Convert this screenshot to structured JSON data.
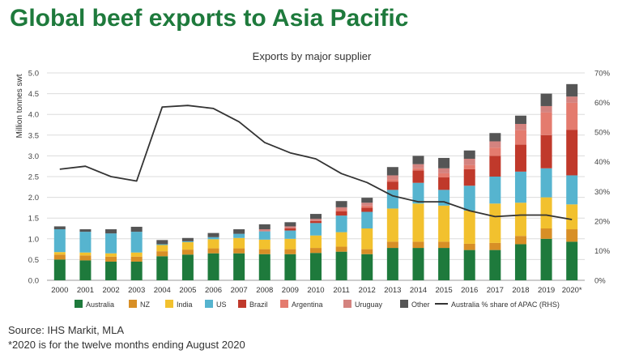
{
  "title": "Global beef exports to Asia Pacific",
  "source": "Source: IHS Markit, MLA",
  "note": "*2020 is for the twelve months ending August 2020",
  "chart_data": {
    "type": "bar",
    "stacked": true,
    "subtitle": "Exports by major supplier",
    "ylabel": "Million tonnes swt",
    "ylim": [
      0,
      5
    ],
    "yticks": [
      "0.0",
      "0.5",
      "1.0",
      "1.5",
      "2.0",
      "2.5",
      "3.0",
      "3.5",
      "4.0",
      "4.5",
      "5.0"
    ],
    "y2lim": [
      0,
      70
    ],
    "y2ticks": [
      "0%",
      "10%",
      "20%",
      "30%",
      "40%",
      "50%",
      "60%",
      "70%"
    ],
    "grid": true,
    "legend_position": "bottom",
    "categories": [
      "2000",
      "2001",
      "2002",
      "2003",
      "2004",
      "2005",
      "2006",
      "2007",
      "2008",
      "2009",
      "2010",
      "2011",
      "2012",
      "2013",
      "2014",
      "2015",
      "2016",
      "2017",
      "2018",
      "2019",
      "2020*"
    ],
    "series": [
      {
        "name": "Australia",
        "color": "#1e7a3c",
        "values": [
          0.5,
          0.48,
          0.45,
          0.45,
          0.58,
          0.62,
          0.65,
          0.65,
          0.63,
          0.63,
          0.66,
          0.69,
          0.63,
          0.78,
          0.78,
          0.78,
          0.73,
          0.73,
          0.87,
          1.0,
          0.93
        ]
      },
      {
        "name": "NZ",
        "color": "#d88f26",
        "values": [
          0.12,
          0.12,
          0.12,
          0.12,
          0.12,
          0.12,
          0.12,
          0.12,
          0.12,
          0.12,
          0.12,
          0.12,
          0.12,
          0.15,
          0.15,
          0.15,
          0.15,
          0.17,
          0.2,
          0.25,
          0.3
        ]
      },
      {
        "name": "India",
        "color": "#f2c12e",
        "values": [
          0.06,
          0.07,
          0.08,
          0.1,
          0.15,
          0.18,
          0.22,
          0.25,
          0.23,
          0.25,
          0.3,
          0.35,
          0.5,
          0.8,
          0.92,
          0.87,
          0.8,
          0.95,
          0.8,
          0.75,
          0.6
        ]
      },
      {
        "name": "US",
        "color": "#56b4cf",
        "values": [
          0.55,
          0.5,
          0.48,
          0.5,
          0.02,
          0.02,
          0.05,
          0.1,
          0.2,
          0.2,
          0.3,
          0.4,
          0.4,
          0.45,
          0.5,
          0.38,
          0.6,
          0.65,
          0.75,
          0.7,
          0.7
        ]
      },
      {
        "name": "Brazil",
        "color": "#c0392b",
        "values": [
          0.0,
          0.0,
          0.0,
          0.0,
          0.0,
          0.0,
          0.0,
          0.0,
          0.0,
          0.05,
          0.05,
          0.1,
          0.1,
          0.2,
          0.3,
          0.3,
          0.4,
          0.5,
          0.65,
          0.8,
          1.1
        ]
      },
      {
        "name": "Argentina",
        "color": "#e47b6e",
        "values": [
          0.0,
          0.0,
          0.0,
          0.0,
          0.0,
          0.0,
          0.0,
          0.0,
          0.0,
          0.0,
          0.0,
          0.05,
          0.05,
          0.05,
          0.05,
          0.1,
          0.1,
          0.2,
          0.35,
          0.55,
          0.65
        ]
      },
      {
        "name": "Uruguay",
        "color": "#d4837f",
        "values": [
          0.0,
          0.0,
          0.0,
          0.0,
          0.0,
          0.0,
          0.0,
          0.0,
          0.05,
          0.05,
          0.05,
          0.05,
          0.07,
          0.1,
          0.1,
          0.12,
          0.15,
          0.15,
          0.15,
          0.15,
          0.15
        ]
      },
      {
        "name": "Other",
        "color": "#555555",
        "values": [
          0.07,
          0.06,
          0.1,
          0.12,
          0.1,
          0.08,
          0.1,
          0.11,
          0.12,
          0.1,
          0.12,
          0.15,
          0.12,
          0.2,
          0.2,
          0.25,
          0.2,
          0.2,
          0.2,
          0.3,
          0.3
        ]
      }
    ],
    "line_series": {
      "name": "Australia % share of APAC (RHS)",
      "color": "#333333",
      "axis": "right",
      "values": [
        37.5,
        38.5,
        35,
        33.5,
        58.5,
        59,
        58,
        53.5,
        46.5,
        43,
        41,
        36,
        33,
        28.5,
        26.5,
        26.5,
        23.5,
        21.5,
        22,
        22,
        20.5
      ]
    }
  }
}
